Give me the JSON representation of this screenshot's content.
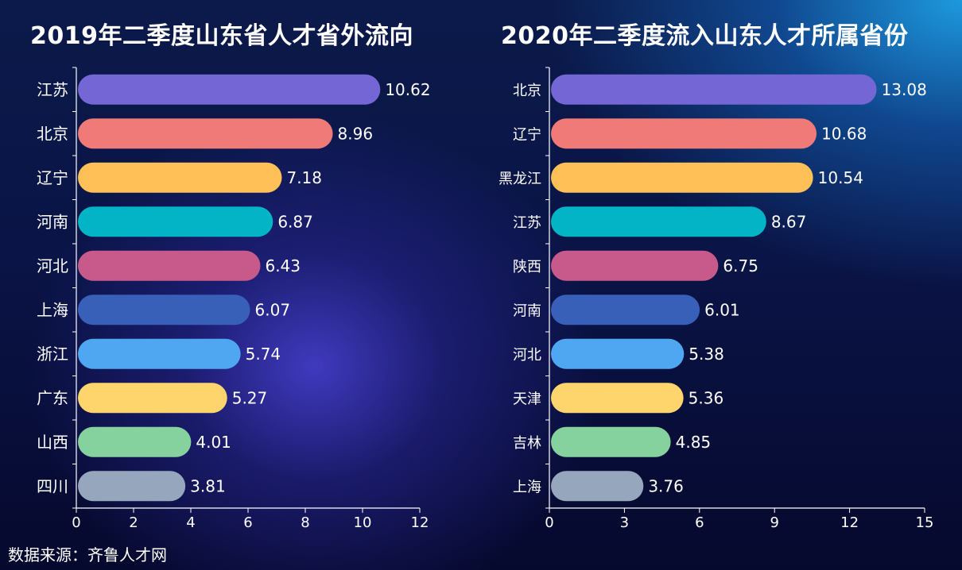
{
  "footer": {
    "source": "数据来源：齐鲁人才网"
  },
  "chart_data": [
    {
      "type": "bar",
      "orientation": "horizontal",
      "title": "2019年二季度山东省人才省外流向",
      "categories": [
        "江苏",
        "北京",
        "辽宁",
        "河南",
        "河北",
        "上海",
        "浙江",
        "广东",
        "山西",
        "四川"
      ],
      "values": [
        10.62,
        8.96,
        7.18,
        6.87,
        6.43,
        6.07,
        5.74,
        5.27,
        4.01,
        3.81
      ],
      "value_labels": [
        "10.62",
        "8.96",
        "7.18",
        "6.87",
        "6.43",
        "6.07",
        "5.74",
        "5.27",
        "4.01",
        "3.81"
      ],
      "colors": [
        "#7466d4",
        "#ef7a78",
        "#fec057",
        "#03b4c7",
        "#c75a8a",
        "#3860b8",
        "#4fa7f2",
        "#fed46d",
        "#86d29f",
        "#96a7bd"
      ],
      "xlim": [
        0,
        12
      ],
      "xticks": [
        "0",
        "2",
        "4",
        "6",
        "8",
        "10",
        "12"
      ],
      "grid": false,
      "legend": "none"
    },
    {
      "type": "bar",
      "orientation": "horizontal",
      "title": "2020年二季度流入山东人才所属省份",
      "categories": [
        "北京",
        "辽宁",
        "黑龙江",
        "江苏",
        "陕西",
        "河南",
        "河北",
        "天津",
        "吉林",
        "上海"
      ],
      "values": [
        13.08,
        10.68,
        10.54,
        8.67,
        6.75,
        6.01,
        5.38,
        5.36,
        4.85,
        3.76
      ],
      "value_labels": [
        "13.08",
        "10.68",
        "10.54",
        "8.67",
        "6.75",
        "6.01",
        "5.38",
        "5.36",
        "4.85",
        "3.76"
      ],
      "colors": [
        "#7466d4",
        "#ef7a78",
        "#fec057",
        "#03b4c7",
        "#c75a8a",
        "#3860b8",
        "#4fa7f2",
        "#fed46d",
        "#86d29f",
        "#96a7bd"
      ],
      "xlim": [
        0,
        15
      ],
      "xticks": [
        "0",
        "3",
        "6",
        "9",
        "12",
        "15"
      ],
      "grid": false,
      "legend": "none"
    }
  ]
}
